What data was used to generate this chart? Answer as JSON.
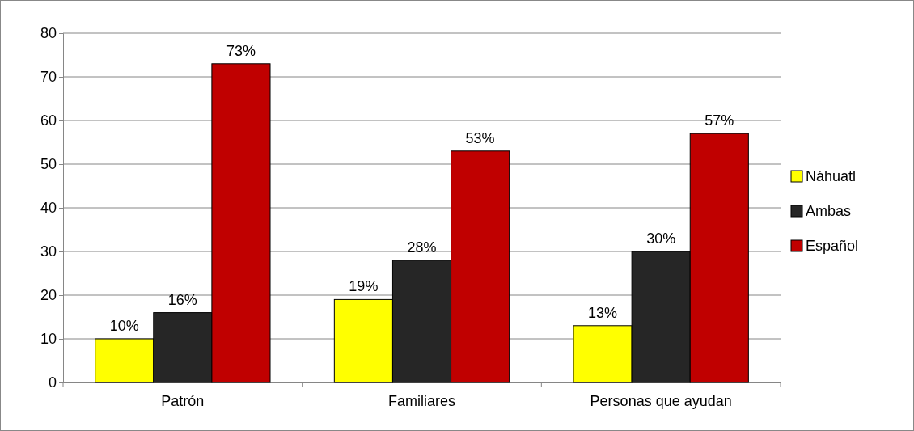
{
  "chart_data": {
    "type": "bar",
    "categories": [
      "Patrón",
      "Familiares",
      "Personas que ayudan"
    ],
    "series": [
      {
        "name": "Náhuatl",
        "color": "#ffff00",
        "values": [
          10,
          19,
          13
        ],
        "value_labels": [
          "10%",
          "19%",
          "13%"
        ]
      },
      {
        "name": "Ambas",
        "color": "#262626",
        "values": [
          16,
          28,
          30
        ],
        "value_labels": [
          "16%",
          "28%",
          "30%"
        ]
      },
      {
        "name": "Español",
        "color": "#c00000",
        "values": [
          73,
          53,
          57
        ],
        "value_labels": [
          "73%",
          "53%",
          "57%"
        ]
      }
    ],
    "ylim": [
      0,
      80
    ],
    "yticks": [
      0,
      10,
      20,
      30,
      40,
      50,
      60,
      70,
      80
    ],
    "grid": "y",
    "legend": "right"
  }
}
